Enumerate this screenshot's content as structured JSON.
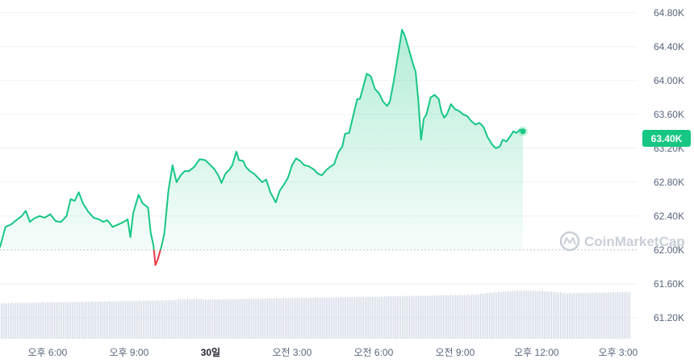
{
  "chart_data": {
    "type": "area",
    "y_ticks": [
      "64.80K",
      "64.40K",
      "64.00K",
      "63.60K",
      "63.20K",
      "62.80K",
      "62.40K",
      "62.00K",
      "61.60K",
      "61.20K"
    ],
    "y_tick_values": [
      64800,
      64400,
      64000,
      63600,
      63200,
      62800,
      62400,
      62000,
      61600,
      61200
    ],
    "ylim": [
      60950,
      64950
    ],
    "x_ticks": [
      {
        "label": "오후 6:00",
        "t": 2.0,
        "bold": false
      },
      {
        "label": "오후 9:00",
        "t": 5.0,
        "bold": false
      },
      {
        "label": "30일",
        "t": 8.0,
        "bold": true
      },
      {
        "label": "오전 3:00",
        "t": 11.0,
        "bold": false
      },
      {
        "label": "오전 6:00",
        "t": 14.0,
        "bold": false
      },
      {
        "label": "오전 9:00",
        "t": 17.0,
        "bold": false
      },
      {
        "label": "오후 12:00",
        "t": 20.0,
        "bold": false
      },
      {
        "label": "오후 3:00",
        "t": 23.0,
        "bold": false
      }
    ],
    "xlim": [
      0.25,
      23.45
    ],
    "baseline": 62000,
    "current_label": "63.40K",
    "current_value": 63400,
    "watermark": "CoinMarketCap",
    "colors": {
      "up_line": "#16c784",
      "down_line": "#ea3943",
      "fill_top": "#16c784",
      "grid": "#eff2f5",
      "volume": "#cfd6e4",
      "badge": "#16c784"
    },
    "price": [
      [
        0.25,
        62030
      ],
      [
        0.45,
        62270
      ],
      [
        0.65,
        62300
      ],
      [
        0.85,
        62350
      ],
      [
        1.05,
        62400
      ],
      [
        1.2,
        62460
      ],
      [
        1.35,
        62330
      ],
      [
        1.5,
        62370
      ],
      [
        1.7,
        62400
      ],
      [
        1.9,
        62380
      ],
      [
        2.1,
        62420
      ],
      [
        2.3,
        62340
      ],
      [
        2.5,
        62330
      ],
      [
        2.7,
        62400
      ],
      [
        2.85,
        62600
      ],
      [
        3.0,
        62580
      ],
      [
        3.15,
        62680
      ],
      [
        3.3,
        62550
      ],
      [
        3.5,
        62450
      ],
      [
        3.7,
        62380
      ],
      [
        3.9,
        62360
      ],
      [
        4.05,
        62330
      ],
      [
        4.2,
        62350
      ],
      [
        4.4,
        62270
      ],
      [
        4.6,
        62300
      ],
      [
        4.8,
        62330
      ],
      [
        4.95,
        62360
      ],
      [
        5.05,
        62150
      ],
      [
        5.15,
        62430
      ],
      [
        5.35,
        62650
      ],
      [
        5.5,
        62550
      ],
      [
        5.7,
        62500
      ],
      [
        5.8,
        62200
      ],
      [
        5.9,
        62050
      ],
      [
        5.97,
        61820
      ],
      [
        6.05,
        61880
      ],
      [
        6.2,
        62050
      ],
      [
        6.3,
        62200
      ],
      [
        6.45,
        62700
      ],
      [
        6.6,
        63000
      ],
      [
        6.75,
        62800
      ],
      [
        6.9,
        62880
      ],
      [
        7.05,
        62930
      ],
      [
        7.2,
        62930
      ],
      [
        7.4,
        62980
      ],
      [
        7.6,
        63070
      ],
      [
        7.8,
        63060
      ],
      [
        8.0,
        63000
      ],
      [
        8.15,
        62950
      ],
      [
        8.3,
        62870
      ],
      [
        8.4,
        62790
      ],
      [
        8.55,
        62900
      ],
      [
        8.7,
        62950
      ],
      [
        8.8,
        63000
      ],
      [
        8.95,
        63160
      ],
      [
        9.05,
        63060
      ],
      [
        9.2,
        63050
      ],
      [
        9.3,
        62980
      ],
      [
        9.45,
        62930
      ],
      [
        9.6,
        62900
      ],
      [
        9.75,
        62850
      ],
      [
        9.9,
        62800
      ],
      [
        10.05,
        62830
      ],
      [
        10.2,
        62680
      ],
      [
        10.4,
        62560
      ],
      [
        10.55,
        62700
      ],
      [
        10.7,
        62770
      ],
      [
        10.85,
        62850
      ],
      [
        11.0,
        63000
      ],
      [
        11.15,
        63080
      ],
      [
        11.3,
        63050
      ],
      [
        11.45,
        63000
      ],
      [
        11.6,
        62990
      ],
      [
        11.8,
        62950
      ],
      [
        11.95,
        62900
      ],
      [
        12.1,
        62880
      ],
      [
        12.25,
        62940
      ],
      [
        12.4,
        62980
      ],
      [
        12.55,
        63010
      ],
      [
        12.7,
        63150
      ],
      [
        12.85,
        63220
      ],
      [
        12.95,
        63370
      ],
      [
        13.1,
        63380
      ],
      [
        13.25,
        63580
      ],
      [
        13.4,
        63780
      ],
      [
        13.5,
        63780
      ],
      [
        13.6,
        63900
      ],
      [
        13.75,
        64080
      ],
      [
        13.9,
        64050
      ],
      [
        14.05,
        63900
      ],
      [
        14.2,
        63850
      ],
      [
        14.35,
        63750
      ],
      [
        14.5,
        63700
      ],
      [
        14.6,
        63750
      ],
      [
        14.75,
        64000
      ],
      [
        14.9,
        64300
      ],
      [
        15.05,
        64600
      ],
      [
        15.15,
        64530
      ],
      [
        15.3,
        64370
      ],
      [
        15.45,
        64200
      ],
      [
        15.55,
        64100
      ],
      [
        15.65,
        63760
      ],
      [
        15.75,
        63300
      ],
      [
        15.85,
        63550
      ],
      [
        15.95,
        63600
      ],
      [
        16.1,
        63800
      ],
      [
        16.25,
        63830
      ],
      [
        16.4,
        63780
      ],
      [
        16.5,
        63630
      ],
      [
        16.6,
        63560
      ],
      [
        16.7,
        63600
      ],
      [
        16.85,
        63720
      ],
      [
        17.0,
        63660
      ],
      [
        17.15,
        63640
      ],
      [
        17.3,
        63600
      ],
      [
        17.45,
        63580
      ],
      [
        17.6,
        63520
      ],
      [
        17.75,
        63480
      ],
      [
        17.9,
        63500
      ],
      [
        18.05,
        63450
      ],
      [
        18.2,
        63330
      ],
      [
        18.35,
        63250
      ],
      [
        18.5,
        63200
      ],
      [
        18.65,
        63220
      ],
      [
        18.75,
        63300
      ],
      [
        18.9,
        63280
      ],
      [
        19.05,
        63350
      ],
      [
        19.15,
        63400
      ],
      [
        19.25,
        63380
      ],
      [
        19.4,
        63420
      ],
      [
        19.5,
        63400
      ]
    ]
  }
}
